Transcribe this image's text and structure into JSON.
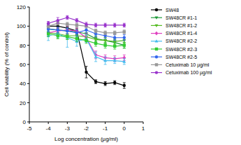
{
  "chart_data": {
    "type": "line",
    "x_label": "Log concentration (µg/ml)",
    "y_label": "Cell viability (% of control)",
    "x": [
      -4,
      -3.5,
      -3,
      -2.5,
      -2,
      -1.5,
      -1,
      -0.5,
      0
    ],
    "xlim": [
      -5,
      1
    ],
    "xticks": [
      -5,
      -4,
      -3,
      -2,
      -1,
      0,
      1
    ],
    "ylim": [
      0,
      120
    ],
    "yticks": [
      0,
      20,
      40,
      60,
      80,
      100,
      120
    ],
    "legend": "right",
    "series": [
      {
        "name": "SW48",
        "color": "#000000",
        "marker": "circle",
        "values": [
          100,
          100,
          98,
          95,
          52,
          42,
          40,
          41,
          38
        ],
        "errors": [
          2,
          2,
          2,
          3,
          6,
          2,
          2,
          2,
          3
        ]
      },
      {
        "name": "SW48CR #1-1",
        "color": "#1f9a3a",
        "marker": "triangle-down",
        "values": [
          97,
          96,
          95,
          94,
          92,
          87,
          85,
          83,
          80
        ],
        "errors": [
          3,
          3,
          3,
          3,
          3,
          3,
          3,
          3,
          3
        ]
      },
      {
        "name": "SW48CR #1-2",
        "color": "#55bb22",
        "marker": "triangle-down",
        "values": [
          93,
          92,
          90,
          90,
          89,
          86,
          85,
          84,
          85
        ],
        "errors": [
          4,
          5,
          4,
          4,
          4,
          3,
          3,
          3,
          3
        ]
      },
      {
        "name": "SW48CR #1-4",
        "color": "#e040c0",
        "marker": "diamond",
        "values": [
          93,
          95,
          96,
          95,
          88,
          70,
          67,
          66,
          67
        ],
        "errors": [
          3,
          3,
          4,
          3,
          4,
          4,
          3,
          3,
          3
        ]
      },
      {
        "name": "SW48CR #2-2",
        "color": "#44bbee",
        "marker": "triangle",
        "values": [
          90,
          92,
          88,
          84,
          87,
          68,
          64,
          64,
          63
        ],
        "errors": [
          5,
          4,
          10,
          5,
          4,
          5,
          4,
          3,
          3
        ]
      },
      {
        "name": "SW48CR #2-3",
        "color": "#33cc33",
        "marker": "square",
        "values": [
          92,
          90,
          89,
          87,
          85,
          82,
          80,
          79,
          80
        ],
        "errors": [
          3,
          3,
          3,
          3,
          3,
          3,
          3,
          3,
          3
        ]
      },
      {
        "name": "SW48CR #2-5",
        "color": "#3366ee",
        "marker": "circle",
        "values": [
          97,
          96,
          95,
          93,
          96,
          92,
          90,
          88,
          88
        ],
        "errors": [
          3,
          3,
          3,
          3,
          3,
          3,
          3,
          3,
          3
        ]
      },
      {
        "name": "Cetuximab 10 µg/ml",
        "color": "#999999",
        "marker": "square",
        "values": [
          100,
          103,
          102,
          101,
          100,
          95,
          93,
          93,
          94
        ],
        "errors": [
          2,
          2,
          2,
          2,
          2,
          2,
          2,
          2,
          2
        ]
      },
      {
        "name": "Cetuximab 100 µg/ml",
        "color": "#9933cc",
        "marker": "circle",
        "values": [
          103,
          106,
          109,
          106,
          102,
          101,
          101,
          101,
          101
        ],
        "errors": [
          2,
          3,
          2,
          2,
          2,
          2,
          2,
          2,
          2
        ]
      }
    ]
  }
}
